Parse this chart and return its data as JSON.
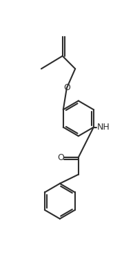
{
  "bg_color": "#ffffff",
  "line_color": "#2d2d2d",
  "bond_lw": 1.5,
  "label_fontsize": 9,
  "label_color": "#2d2d2d",
  "figsize": [
    1.8,
    3.65
  ],
  "dpi": 100,
  "xlim": [
    0,
    180
  ],
  "ylim": [
    0,
    365
  ]
}
